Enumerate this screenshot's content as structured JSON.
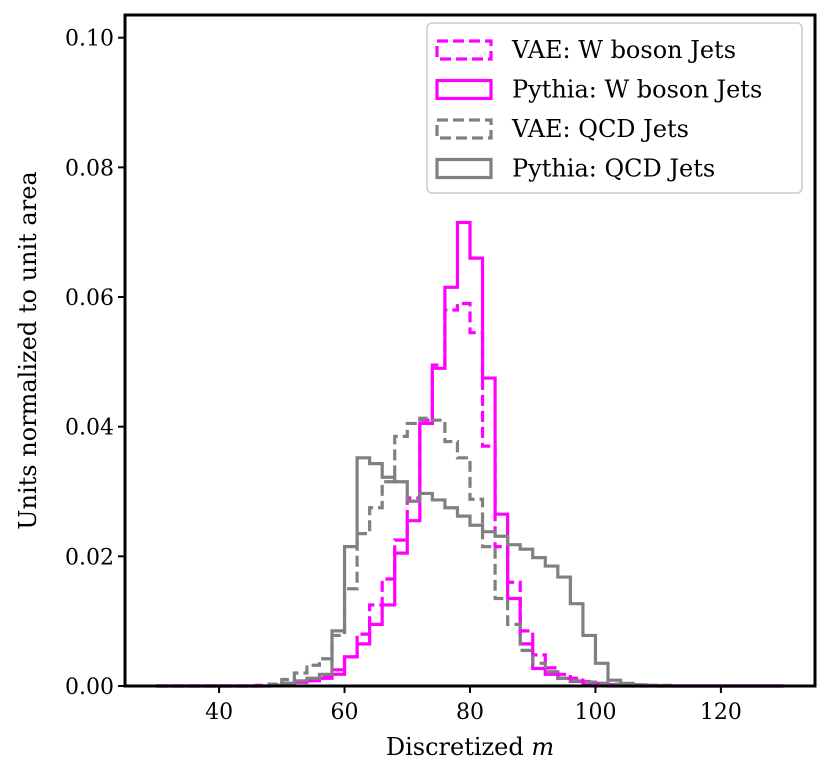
{
  "chart_data": {
    "type": "histogram-step",
    "title": "",
    "xlabel": "Discretized",
    "xlabel_var": "m",
    "ylabel": "Units normalized to unit area",
    "xlim": [
      25,
      135
    ],
    "ylim": [
      0,
      0.1035
    ],
    "x_ticks": [
      40,
      60,
      80,
      100,
      120
    ],
    "x_tick_labels": [
      "40",
      "60",
      "80",
      "100",
      "120"
    ],
    "y_ticks": [
      0.0,
      0.02,
      0.04,
      0.06,
      0.08,
      0.1
    ],
    "y_tick_labels": [
      "0.00",
      "0.02",
      "0.04",
      "0.06",
      "0.08",
      "0.10"
    ],
    "bin_edges": [
      30,
      32,
      34,
      36,
      38,
      40,
      42,
      44,
      46,
      48,
      50,
      52,
      54,
      56,
      58,
      60,
      62,
      64,
      66,
      68,
      70,
      72,
      74,
      76,
      78,
      80,
      82,
      84,
      86,
      88,
      90,
      92,
      94,
      96,
      98,
      100,
      102,
      104,
      106,
      108,
      110,
      112,
      114,
      116,
      118,
      120,
      122,
      124,
      126,
      128,
      130
    ],
    "legend_position": "upper right",
    "series": [
      {
        "name": "VAE: W boson Jets",
        "color": "#ff00ff",
        "style": "dashed",
        "values": [
          0,
          0,
          0,
          0,
          0,
          0,
          0,
          0,
          0.0001,
          0.0002,
          0.0004,
          0.0006,
          0.0009,
          0.0015,
          0.0025,
          0.0045,
          0.008,
          0.0125,
          0.0165,
          0.0225,
          0.029,
          0.041,
          0.0495,
          0.058,
          0.059,
          0.0545,
          0.037,
          0.0215,
          0.016,
          0.0085,
          0.0048,
          0.0028,
          0.0018,
          0.0012,
          0.0007,
          0.0004,
          0.0002,
          0.0001,
          0,
          0,
          0,
          0,
          0,
          0,
          0,
          0,
          0,
          0,
          0,
          0
        ]
      },
      {
        "name": "Pythia: W boson Jets",
        "color": "#ff00ff",
        "style": "solid",
        "values": [
          0,
          0,
          0,
          0,
          0,
          0,
          0,
          0,
          0,
          0.0001,
          0.0003,
          0.0006,
          0.0008,
          0.0012,
          0.0018,
          0.0045,
          0.0065,
          0.0095,
          0.0125,
          0.0205,
          0.0255,
          0.0405,
          0.049,
          0.0615,
          0.0715,
          0.066,
          0.0475,
          0.0265,
          0.0135,
          0.0065,
          0.0027,
          0.0018,
          0.0012,
          0.0007,
          0.0003,
          0.0001,
          0,
          0,
          0,
          0,
          0,
          0,
          0,
          0,
          0,
          0,
          0,
          0,
          0,
          0
        ]
      },
      {
        "name": "VAE: QCD Jets",
        "color": "#808080",
        "style": "dashed",
        "values": [
          0,
          0,
          0,
          0,
          0,
          0,
          0,
          0,
          0,
          0.0003,
          0.001,
          0.002,
          0.0032,
          0.0042,
          0.0078,
          0.015,
          0.0235,
          0.0275,
          0.0315,
          0.0385,
          0.0405,
          0.0413,
          0.041,
          0.0377,
          0.0352,
          0.0288,
          0.0215,
          0.0135,
          0.0095,
          0.0055,
          0.0035,
          0.0022,
          0.0012,
          0.0008,
          0.0006,
          0.0004,
          0.0003,
          0.0002,
          0.0002,
          0.0001,
          0.0001,
          0,
          0,
          0,
          0,
          0,
          0,
          0,
          0,
          0
        ]
      },
      {
        "name": "Pythia: QCD Jets",
        "color": "#808080",
        "style": "solid",
        "values": [
          0,
          0,
          0,
          0,
          0,
          0,
          0,
          0,
          0,
          0.0001,
          0.0004,
          0.0008,
          0.0012,
          0.0018,
          0.0085,
          0.0215,
          0.0352,
          0.0343,
          0.0322,
          0.0315,
          0.0285,
          0.0297,
          0.0287,
          0.0275,
          0.0262,
          0.0248,
          0.0238,
          0.0231,
          0.0218,
          0.0211,
          0.0198,
          0.0185,
          0.0168,
          0.0127,
          0.0078,
          0.0035,
          0.0009,
          0.0004,
          0.0002,
          0.0001,
          0,
          0,
          0,
          0,
          0,
          0,
          0,
          0,
          0,
          0
        ]
      }
    ]
  }
}
